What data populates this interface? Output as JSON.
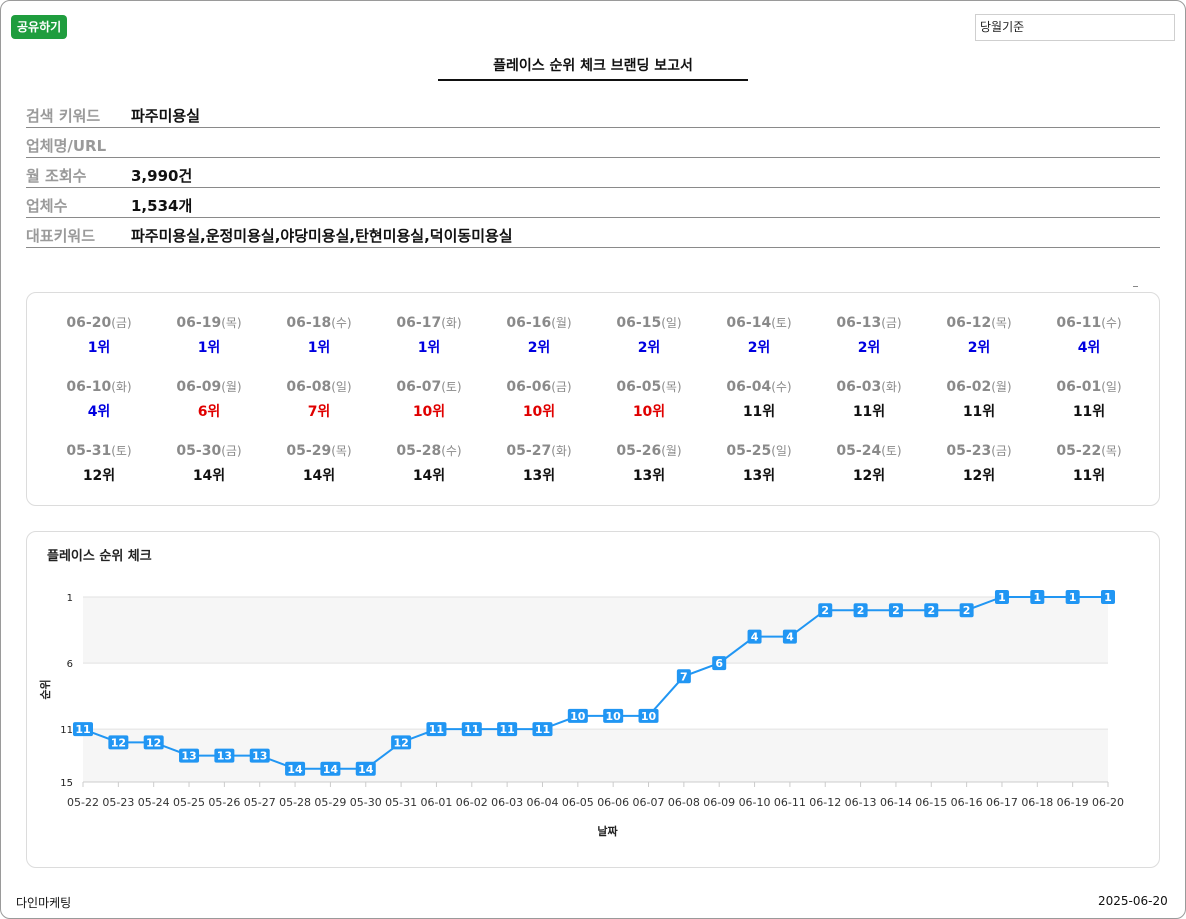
{
  "share_label": "공유하기",
  "period_select": {
    "value": "당월기준"
  },
  "report_title": "플레이스 순위 체크 브랜딩 보고서",
  "info": [
    {
      "label": "검색 키워드",
      "value": "파주미용실",
      "obscured": false
    },
    {
      "label": "업체명/URL",
      "value": "",
      "obscured": true
    },
    {
      "label": "월 조회수",
      "value": "3,990건",
      "obscured": false
    },
    {
      "label": "업체수",
      "value": "1,534개",
      "obscured": false
    },
    {
      "label": "대표키워드",
      "value": "파주미용실,운정미용실,야당미용실,탄현미용실,덕이동미용실",
      "obscured": false
    }
  ],
  "colors": {
    "blue": "#0000e0",
    "red": "#e00000",
    "black": "#111111",
    "line": "#2196f3",
    "share": "#1f9d3e"
  },
  "rank_days": [
    {
      "date": "06-20",
      "dow": "(금)",
      "rank": "1위",
      "color": "blue"
    },
    {
      "date": "06-19",
      "dow": "(목)",
      "rank": "1위",
      "color": "blue"
    },
    {
      "date": "06-18",
      "dow": "(수)",
      "rank": "1위",
      "color": "blue"
    },
    {
      "date": "06-17",
      "dow": "(화)",
      "rank": "1위",
      "color": "blue"
    },
    {
      "date": "06-16",
      "dow": "(월)",
      "rank": "2위",
      "color": "blue"
    },
    {
      "date": "06-15",
      "dow": "(일)",
      "rank": "2위",
      "color": "blue"
    },
    {
      "date": "06-14",
      "dow": "(토)",
      "rank": "2위",
      "color": "blue"
    },
    {
      "date": "06-13",
      "dow": "(금)",
      "rank": "2위",
      "color": "blue"
    },
    {
      "date": "06-12",
      "dow": "(목)",
      "rank": "2위",
      "color": "blue"
    },
    {
      "date": "06-11",
      "dow": "(수)",
      "rank": "4위",
      "color": "blue"
    },
    {
      "date": "06-10",
      "dow": "(화)",
      "rank": "4위",
      "color": "blue"
    },
    {
      "date": "06-09",
      "dow": "(월)",
      "rank": "6위",
      "color": "red"
    },
    {
      "date": "06-08",
      "dow": "(일)",
      "rank": "7위",
      "color": "red"
    },
    {
      "date": "06-07",
      "dow": "(토)",
      "rank": "10위",
      "color": "red"
    },
    {
      "date": "06-06",
      "dow": "(금)",
      "rank": "10위",
      "color": "red"
    },
    {
      "date": "06-05",
      "dow": "(목)",
      "rank": "10위",
      "color": "red"
    },
    {
      "date": "06-04",
      "dow": "(수)",
      "rank": "11위",
      "color": "black"
    },
    {
      "date": "06-03",
      "dow": "(화)",
      "rank": "11위",
      "color": "black"
    },
    {
      "date": "06-02",
      "dow": "(월)",
      "rank": "11위",
      "color": "black"
    },
    {
      "date": "06-01",
      "dow": "(일)",
      "rank": "11위",
      "color": "black"
    },
    {
      "date": "05-31",
      "dow": "(토)",
      "rank": "12위",
      "color": "black"
    },
    {
      "date": "05-30",
      "dow": "(금)",
      "rank": "14위",
      "color": "black"
    },
    {
      "date": "05-29",
      "dow": "(목)",
      "rank": "14위",
      "color": "black"
    },
    {
      "date": "05-28",
      "dow": "(수)",
      "rank": "14위",
      "color": "black"
    },
    {
      "date": "05-27",
      "dow": "(화)",
      "rank": "13위",
      "color": "black"
    },
    {
      "date": "05-26",
      "dow": "(월)",
      "rank": "13위",
      "color": "black"
    },
    {
      "date": "05-25",
      "dow": "(일)",
      "rank": "13위",
      "color": "black"
    },
    {
      "date": "05-24",
      "dow": "(토)",
      "rank": "12위",
      "color": "black"
    },
    {
      "date": "05-23",
      "dow": "(금)",
      "rank": "12위",
      "color": "black"
    },
    {
      "date": "05-22",
      "dow": "(목)",
      "rank": "11위",
      "color": "black"
    }
  ],
  "chart_data": {
    "type": "line",
    "title": "플레이스 순위 체크",
    "xlabel": "날짜",
    "ylabel": "순위",
    "y_inverted": true,
    "ylim": [
      1,
      15
    ],
    "yticks": [
      1,
      6,
      11,
      15
    ],
    "grid": "horizontal bands",
    "categories": [
      "05-22",
      "05-23",
      "05-24",
      "05-25",
      "05-26",
      "05-27",
      "05-28",
      "05-29",
      "05-30",
      "05-31",
      "06-01",
      "06-02",
      "06-03",
      "06-04",
      "06-05",
      "06-06",
      "06-07",
      "06-08",
      "06-09",
      "06-10",
      "06-11",
      "06-12",
      "06-13",
      "06-14",
      "06-15",
      "06-16",
      "06-17",
      "06-18",
      "06-19",
      "06-20"
    ],
    "series": [
      {
        "values": [
          11,
          12,
          12,
          13,
          13,
          13,
          14,
          14,
          14,
          12,
          11,
          11,
          11,
          11,
          10,
          10,
          10,
          7,
          6,
          4,
          4,
          2,
          2,
          2,
          2,
          2,
          1,
          1,
          1,
          1
        ]
      }
    ]
  },
  "footer": {
    "company": "다인마케팅",
    "date": "2025-06-20"
  }
}
